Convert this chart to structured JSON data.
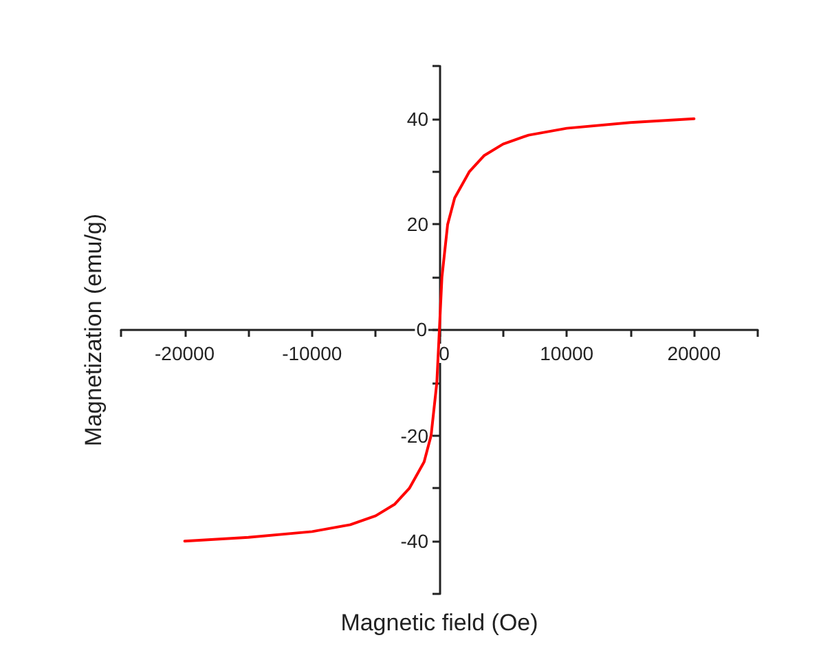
{
  "chart_data": {
    "type": "line",
    "xlabel": "Magnetic field (Oe)",
    "ylabel": "Magnetization (emu/g)",
    "x": [
      -20000,
      -15000,
      -10000,
      -7000,
      -5000,
      -3500,
      -2360,
      -1200,
      -650,
      -200,
      0,
      200,
      650,
      1200,
      2360,
      3500,
      5000,
      7000,
      10000,
      15000,
      20000
    ],
    "series": [
      {
        "color": "#ff0000",
        "values": [
          -40,
          -39.3,
          -38.2,
          -36.9,
          -35.2,
          -33,
          -30,
          -25,
          -20,
          -10,
          0,
          10,
          20,
          25,
          30,
          33,
          35.2,
          36.9,
          38.2,
          39.3,
          40
        ]
      }
    ],
    "xlim": [
      -25000,
      25000
    ],
    "xticks": [
      {
        "value": -25000,
        "label": null
      },
      -20000,
      {
        "value": -15000,
        "label": null
      },
      -10000,
      {
        "value": -5000,
        "label": null
      },
      0,
      {
        "value": 5000,
        "label": null
      },
      10000,
      {
        "value": 15000,
        "label": null
      },
      20000,
      {
        "value": 25000,
        "label": null
      }
    ],
    "ylim": [
      -50,
      50
    ],
    "yticks": [
      {
        "value": -50,
        "label": null
      },
      -40,
      {
        "value": -30,
        "label": null
      },
      -20,
      {
        "value": -10,
        "label": null
      },
      0,
      {
        "value": 10,
        "label": null
      },
      20,
      {
        "value": 30,
        "label": null
      },
      40,
      {
        "value": 50,
        "label": null
      }
    ],
    "marker": "none",
    "line_style": "solid"
  }
}
